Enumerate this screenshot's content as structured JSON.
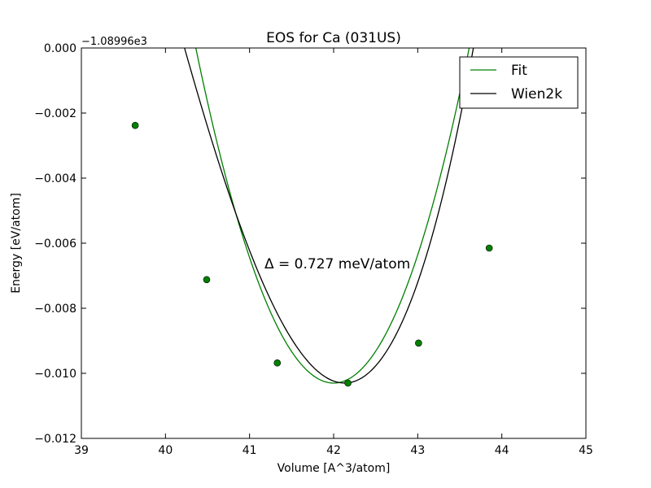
{
  "chart_data": {
    "type": "line",
    "title": "EOS for Ca (031US)",
    "xlabel": "Volume [A^3/atom]",
    "ylabel": "Energy [eV/atom]",
    "offset_label": "−1.08996e3",
    "annotation": "Δ = 0.727 meV/atom",
    "xlim": [
      39,
      45
    ],
    "ylim": [
      -0.012,
      0.0
    ],
    "x_ticks": [
      39,
      40,
      41,
      42,
      43,
      44,
      45
    ],
    "x_tick_labels": [
      "39",
      "40",
      "41",
      "42",
      "43",
      "44",
      "45"
    ],
    "y_ticks": [
      0.0,
      -0.002,
      -0.004,
      -0.006,
      -0.008,
      -0.01,
      -0.012
    ],
    "y_tick_labels": [
      "0.000",
      "−0.002",
      "−0.004",
      "−0.006",
      "−0.008",
      "−0.010",
      "−0.012"
    ],
    "grid": false,
    "legend_position": "top-right",
    "series": [
      {
        "name": "Fit",
        "color": "#008000",
        "style": "line",
        "curve": {
          "e0": -0.0103,
          "v0": 42.0,
          "a": 0.0039,
          "b": 4e-05,
          "xmin": 39.64,
          "xmax": 44.7
        }
      },
      {
        "name": "Wien2k",
        "color": "#000000",
        "style": "line",
        "curve": {
          "e0": -0.0103,
          "v0": 42.13,
          "a": 0.0037,
          "b": 0.00045,
          "xmin": 39.64,
          "xmax": 44.67
        }
      }
    ],
    "points": {
      "color": "#008000",
      "x": [
        39.64,
        40.49,
        41.33,
        42.17,
        43.01,
        43.85
      ],
      "y": [
        -0.00238,
        -0.00712,
        -0.00968,
        -0.0103,
        -0.00907,
        -0.00615
      ]
    }
  }
}
